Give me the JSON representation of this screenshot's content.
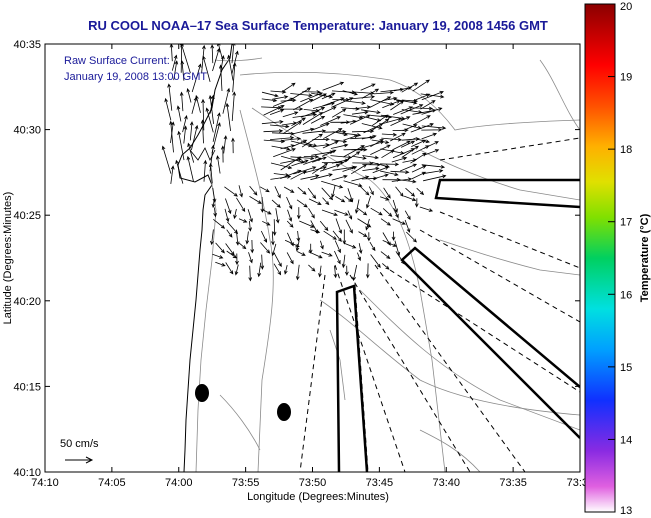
{
  "title": "RU COOL  NOAA–17  Sea Surface Temperature:  January 19, 2008 1456 GMT",
  "overlay": {
    "line1": "Raw Surface Current:",
    "line2": "January 19, 2008 13:00 GMT"
  },
  "scale_label": "50 cm/s",
  "axes": {
    "xlabel": "Longitude (Degrees:Minutes)",
    "ylabel": "Latitude (Degrees:Minutes)",
    "xticks": [
      "74:10",
      "74:05",
      "74:00",
      "73:55",
      "73:50",
      "73:45",
      "73:40",
      "73:35",
      "73:3"
    ],
    "yticks": [
      "40:35",
      "40:30",
      "40:25",
      "40:20",
      "40:15",
      "40:10"
    ]
  },
  "colorbar": {
    "label": "Temperature (°C)",
    "ticks": [
      "20",
      "19",
      "18",
      "17",
      "16",
      "15",
      "14",
      "13"
    ],
    "min": 13,
    "max": 20
  },
  "colors": {
    "title": "#1a1a99",
    "overlay_text": "#1a1a99",
    "contour": "#8a8a8a",
    "frame": "#000000"
  }
}
